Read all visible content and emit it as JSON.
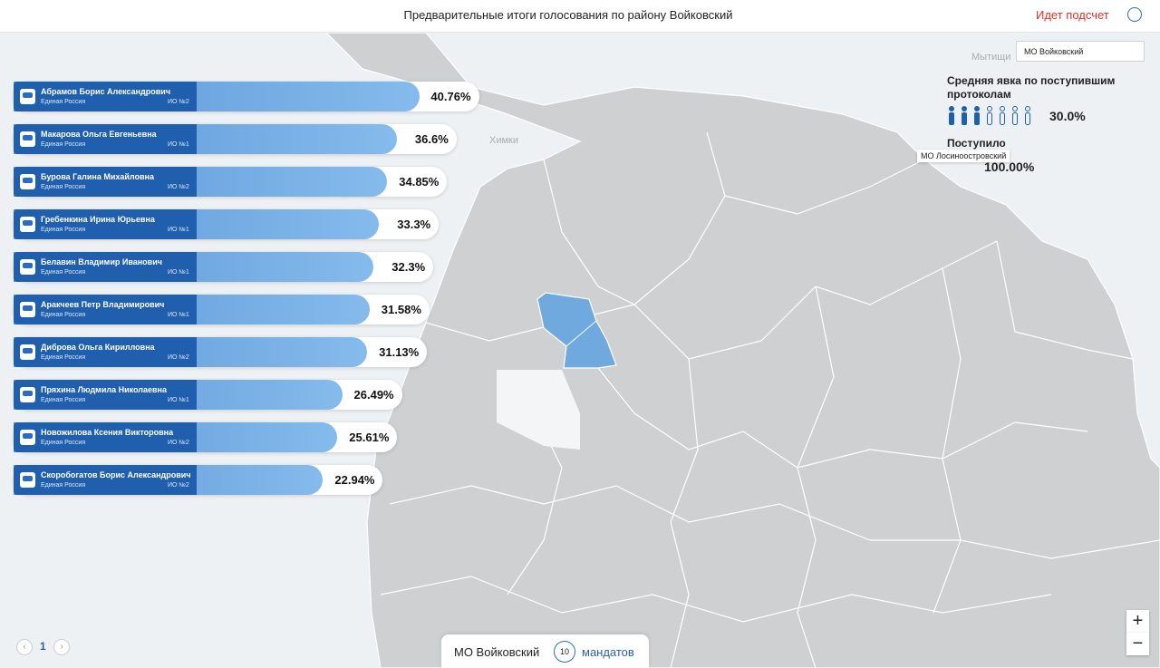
{
  "header": {
    "title": "Предварительные итоги голосования по району Войковский",
    "status": "Идет подсчет"
  },
  "candidates": [
    {
      "name": "Абрамов Борис Александрович",
      "party": "Единая Россия",
      "district": "ИО №2",
      "percent": 40.76,
      "percent_label": "40.76%"
    },
    {
      "name": "Макарова Ольга Евгеньевна",
      "party": "Единая Россия",
      "district": "ИО №1",
      "percent": 36.6,
      "percent_label": "36.6%"
    },
    {
      "name": "Бурова Галина Михайловна",
      "party": "Единая Россия",
      "district": "ИО №2",
      "percent": 34.85,
      "percent_label": "34.85%"
    },
    {
      "name": "Гребенкина Ирина Юрьевна",
      "party": "Единая Россия",
      "district": "ИО №1",
      "percent": 33.3,
      "percent_label": "33.3%"
    },
    {
      "name": "Белавин Владимир Иванович",
      "party": "Единая Россия",
      "district": "ИО №1",
      "percent": 32.3,
      "percent_label": "32.3%"
    },
    {
      "name": "Аракчеев Петр Владимирович",
      "party": "Единая Россия",
      "district": "ИО №1",
      "percent": 31.58,
      "percent_label": "31.58%"
    },
    {
      "name": "Диброва Ольга Кирилловна",
      "party": "Единая Россия",
      "district": "ИО №2",
      "percent": 31.13,
      "percent_label": "31.13%"
    },
    {
      "name": "Пряхина Людмила Николаевна",
      "party": "Единая Россия",
      "district": "ИО №1",
      "percent": 26.49,
      "percent_label": "26.49%"
    },
    {
      "name": "Новожилова Ксения Викторовна",
      "party": "Единая Россия",
      "district": "ИО №2",
      "percent": 25.61,
      "percent_label": "25.61%"
    },
    {
      "name": "Скоробогатов Борис Александрович",
      "party": "Единая Россия",
      "district": "ИО №2",
      "percent": 22.94,
      "percent_label": "22.94%"
    }
  ],
  "side_panel": {
    "select": "МО Войковский",
    "turnout_label": "Средняя явка по поступившим протоколам",
    "turnout_value": "30.0%",
    "received_label": "Поступило",
    "received_value": "100.00%",
    "tooltip": "МО Лосиноостровский"
  },
  "bottom": {
    "district": "МО Войковский",
    "mandates_count": "10",
    "mandates_label": "мандатов"
  },
  "pagination": {
    "page": "1"
  },
  "zoom": {
    "in": "+",
    "out": "−"
  },
  "map_labels": [
    "Химки",
    "Мытищи"
  ]
}
